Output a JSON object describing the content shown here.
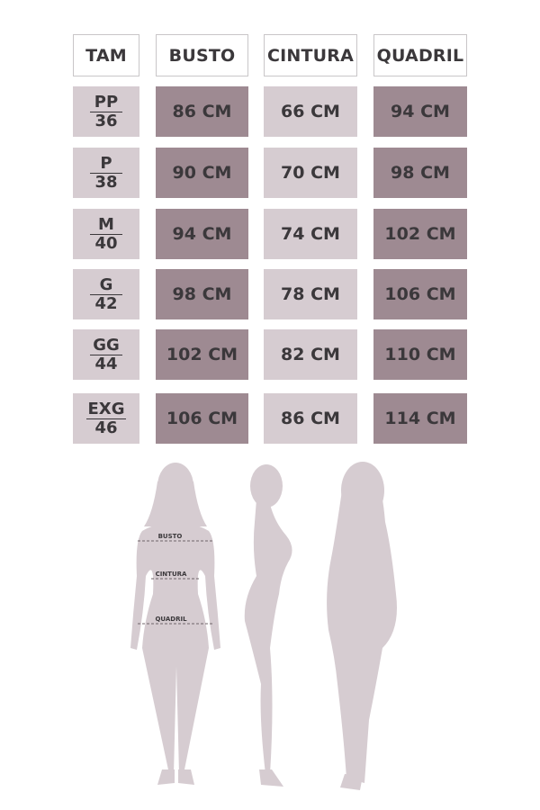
{
  "headers": [
    "TAM",
    "BUSTO",
    "CINTURA",
    "QUADRIL"
  ],
  "rows": [
    {
      "size": "PP",
      "number": "36",
      "busto": "86 CM",
      "cintura": "66 CM",
      "quadril": "94 CM"
    },
    {
      "size": "P",
      "number": "38",
      "busto": "90 CM",
      "cintura": "70 CM",
      "quadril": "98 CM"
    },
    {
      "size": "M",
      "number": "40",
      "busto": "94 CM",
      "cintura": "74 CM",
      "quadril": "102 CM"
    },
    {
      "size": "G",
      "number": "42",
      "busto": "98 CM",
      "cintura": "78 CM",
      "quadril": "106 CM"
    },
    {
      "size": "GG",
      "number": "44",
      "busto": "102 CM",
      "cintura": "82 CM",
      "quadril": "110 CM"
    },
    {
      "size": "EXG",
      "number": "46",
      "busto": "106 CM",
      "cintura": "86 CM",
      "quadril": "114 CM"
    }
  ],
  "figure_labels": {
    "busto": "BUSTO",
    "cintura": "CINTURA",
    "quadril": "QUADRIL"
  },
  "colors": {
    "light": "#d6ccd1",
    "dark": "#9e8a92",
    "text": "#3b383b",
    "silhouette": "#d6ccd1"
  }
}
